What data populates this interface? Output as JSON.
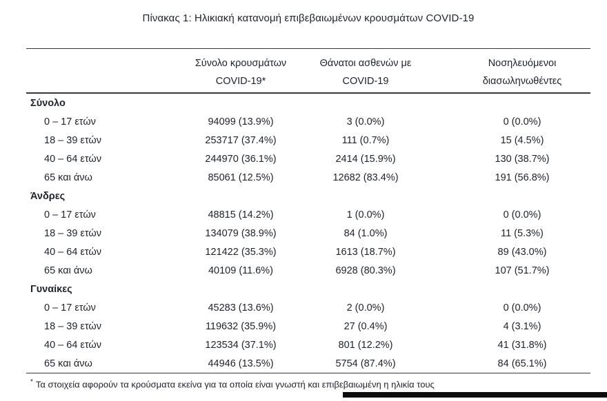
{
  "page": {
    "title": "Πίνακας 1: Ηλικιακή κατανομή επιβεβαιωμένων κρουσμάτων COVID-19",
    "footnote": {
      "marker": "*",
      "text": "Τα στοιχεία αφορούν τα κρούσματα εκείνα για τα οποία είναι γνωστή και επιβεβαιωμένη η ηλικία τους"
    },
    "colors": {
      "text": "#20242c",
      "rule": "#33363c",
      "background": "#ffffff",
      "bottom_bar": "#0d0d0d"
    }
  },
  "table": {
    "columns": [
      {
        "line1": "Σύνολο κρουσμάτων",
        "line2": "COVID-19*"
      },
      {
        "line1": "Θάνατοι ασθενών με",
        "line2": "COVID-19"
      },
      {
        "line1": "Νοσηλευόμενοι",
        "line2": "διασωληνωθέντες"
      }
    ],
    "sections": [
      {
        "label": "Σύνολο",
        "rows": [
          {
            "label": "0 – 17 ετών",
            "cases": "94099 (13.9%)",
            "deaths": "3 (0.0%)",
            "intubated": "0 (0.0%)"
          },
          {
            "label": "18 – 39 ετών",
            "cases": "253717 (37.4%)",
            "deaths": "111 (0.7%)",
            "intubated": "15 (4.5%)"
          },
          {
            "label": "40 – 64 ετών",
            "cases": "244970 (36.1%)",
            "deaths": "2414 (15.9%)",
            "intubated": "130 (38.7%)"
          },
          {
            "label": "65 και άνω",
            "cases": "85061 (12.5%)",
            "deaths": "12682 (83.4%)",
            "intubated": "191 (56.8%)"
          }
        ]
      },
      {
        "label": "Άνδρες",
        "rows": [
          {
            "label": "0 – 17 ετών",
            "cases": "48815 (14.2%)",
            "deaths": "1 (0.0%)",
            "intubated": "0 (0.0%)"
          },
          {
            "label": "18 – 39 ετών",
            "cases": "134079 (38.9%)",
            "deaths": "84 (1.0%)",
            "intubated": "11 (5.3%)"
          },
          {
            "label": "40 – 64 ετών",
            "cases": "121422 (35.3%)",
            "deaths": "1613 (18.7%)",
            "intubated": "89 (43.0%)"
          },
          {
            "label": "65 και άνω",
            "cases": "40109 (11.6%)",
            "deaths": "6928 (80.3%)",
            "intubated": "107 (51.7%)"
          }
        ]
      },
      {
        "label": "Γυναίκες",
        "rows": [
          {
            "label": "0 – 17 ετών",
            "cases": "45283 (13.6%)",
            "deaths": "2 (0.0%)",
            "intubated": "0 (0.0%)"
          },
          {
            "label": "18 – 39 ετών",
            "cases": "119632 (35.9%)",
            "deaths": "27 (0.4%)",
            "intubated": "4 (3.1%)"
          },
          {
            "label": "40 – 64 ετών",
            "cases": "123534 (37.1%)",
            "deaths": "801 (12.2%)",
            "intubated": "41 (31.8%)"
          },
          {
            "label": "65 και άνω",
            "cases": "44946 (13.5%)",
            "deaths": "5754 (87.4%)",
            "intubated": "84 (65.1%)"
          }
        ]
      }
    ]
  }
}
